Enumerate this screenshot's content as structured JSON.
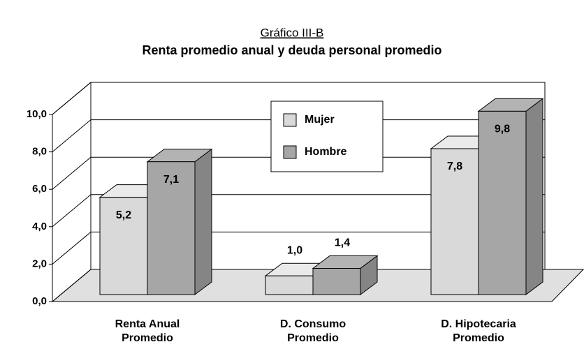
{
  "chart_data": {
    "type": "bar3d",
    "title": "Gráfico III-B",
    "subtitle": "Renta promedio anual y deuda personal promedio",
    "categories": [
      [
        "Renta Anual",
        "Promedio"
      ],
      [
        "D. Consumo",
        "Promedio"
      ],
      [
        "D. Hipotecaria",
        "Promedio"
      ]
    ],
    "series": [
      {
        "name": "Mujer",
        "color": "#d9d9d9",
        "values": [
          5.2,
          1.0,
          7.8
        ],
        "value_labels": [
          "5,2",
          "1,0",
          "7,8"
        ]
      },
      {
        "name": "Hombre",
        "color": "#a6a6a6",
        "values": [
          7.1,
          1.4,
          9.8
        ],
        "value_labels": [
          "7,1",
          "1,4",
          "9,8"
        ]
      }
    ],
    "ylim": [
      0,
      10
    ],
    "yticks": [
      {
        "value": 0,
        "label": "0,0"
      },
      {
        "value": 2,
        "label": "2,0"
      },
      {
        "value": 4,
        "label": "4,0"
      },
      {
        "value": 6,
        "label": "6,0"
      },
      {
        "value": 8,
        "label": "8,0"
      },
      {
        "value": 10,
        "label": "10,0"
      }
    ],
    "grid": true,
    "legend": "top"
  }
}
